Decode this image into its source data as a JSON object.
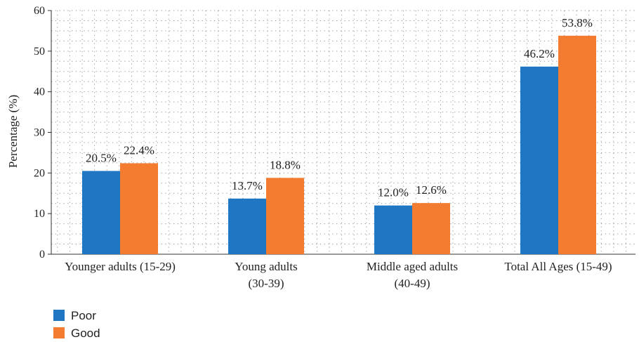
{
  "chart_data": {
    "type": "bar",
    "title": "",
    "xlabel": "",
    "ylabel": "Percentage (%)",
    "ylim": [
      0,
      60
    ],
    "yticks": [
      0,
      10,
      20,
      30,
      40,
      50,
      60
    ],
    "grid": true,
    "grid_style": "dotted",
    "legend_position": "bottom-left",
    "categories": [
      [
        "Younger adults (15-29)"
      ],
      [
        "Young adults",
        "(30-39)"
      ],
      [
        "Middle aged adults",
        "(40-49)"
      ],
      [
        "Total All Ages (15-49)"
      ]
    ],
    "series": [
      {
        "name": "Poor",
        "color": "#1f77c4",
        "values": [
          20.5,
          13.7,
          12.0,
          46.2
        ],
        "labels": [
          "20.5%",
          "13.7%",
          "12.0%",
          "46.2%"
        ]
      },
      {
        "name": "Good",
        "color": "#f47c30",
        "values": [
          22.4,
          18.8,
          12.6,
          53.8
        ],
        "labels": [
          "22.4%",
          "18.8%",
          "12.6%",
          "53.8%"
        ]
      }
    ]
  }
}
